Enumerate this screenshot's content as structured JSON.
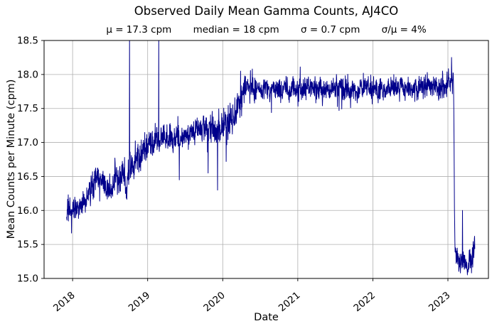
{
  "chart_data": {
    "type": "line",
    "title": "Observed Daily Mean Gamma Counts, AJ4CO",
    "stats": {
      "mu": "μ = 17.3 cpm",
      "median": "median = 18 cpm",
      "sigma": "σ = 0.7 cpm",
      "sigma_over_mu": "σ/μ = 4%"
    },
    "xlabel": "Date",
    "ylabel": "Mean Counts per Minute (cpm)",
    "x_ticks": [
      2018,
      2019,
      2020,
      2021,
      2022,
      2023
    ],
    "y_ticks": [
      15.0,
      15.5,
      16.0,
      16.5,
      17.0,
      17.5,
      18.0,
      18.5
    ],
    "xlim": [
      2017.62,
      2023.54
    ],
    "ylim": [
      15.0,
      18.5
    ],
    "grid": true,
    "legend": "none",
    "line_color": "#00008b",
    "grid_color": "#b0b0b0",
    "axis_color": "#000000",
    "series": {
      "name": "Observed daily mean gamma counts",
      "units": "cpm",
      "sampling": "daily",
      "x_start": 2017.92,
      "x_end": 2023.36,
      "trend_anchors": [
        [
          2017.92,
          15.85
        ],
        [
          2018.0,
          15.97
        ],
        [
          2018.08,
          16.1
        ],
        [
          2018.17,
          16.18
        ],
        [
          2018.25,
          16.33
        ],
        [
          2018.33,
          16.47
        ],
        [
          2018.42,
          16.36
        ],
        [
          2018.49,
          16.3
        ],
        [
          2018.56,
          16.52
        ],
        [
          2018.64,
          16.48
        ],
        [
          2018.71,
          16.4
        ],
        [
          2018.78,
          16.62
        ],
        [
          2018.87,
          16.8
        ],
        [
          2018.96,
          16.95
        ],
        [
          2019.06,
          17.0
        ],
        [
          2019.16,
          17.04
        ],
        [
          2019.26,
          17.08
        ],
        [
          2019.36,
          17.14
        ],
        [
          2019.46,
          17.04
        ],
        [
          2019.56,
          17.12
        ],
        [
          2019.66,
          17.24
        ],
        [
          2019.76,
          17.27
        ],
        [
          2019.86,
          17.18
        ],
        [
          2019.96,
          17.13
        ],
        [
          2020.06,
          17.28
        ],
        [
          2020.14,
          17.4
        ],
        [
          2020.21,
          17.58
        ],
        [
          2020.28,
          17.76
        ],
        [
          2020.4,
          17.8
        ],
        [
          2020.8,
          17.78
        ],
        [
          2021.2,
          17.8
        ],
        [
          2021.6,
          17.78
        ],
        [
          2022.0,
          17.8
        ],
        [
          2022.4,
          17.8
        ],
        [
          2022.8,
          17.82
        ],
        [
          2023.0,
          17.86
        ],
        [
          2023.05,
          17.92
        ],
        [
          2023.075,
          17.96
        ],
        [
          2023.092,
          15.45
        ],
        [
          2023.12,
          15.26
        ],
        [
          2023.16,
          15.18
        ],
        [
          2023.22,
          15.22
        ],
        [
          2023.27,
          15.18
        ],
        [
          2023.31,
          15.28
        ],
        [
          2023.34,
          15.45
        ],
        [
          2023.36,
          15.55
        ]
      ],
      "noise_sd": [
        [
          2017.92,
          0.105
        ],
        [
          2018.45,
          0.125
        ],
        [
          2019.0,
          0.1
        ],
        [
          2019.9,
          0.115
        ],
        [
          2020.3,
          0.085
        ],
        [
          2023.085,
          0.09
        ]
      ],
      "anomalies": [
        [
          2018.715,
          16.18
        ],
        [
          2018.757,
          18.6
        ],
        [
          2019.148,
          18.6
        ],
        [
          2019.42,
          16.45
        ],
        [
          2019.805,
          16.55
        ],
        [
          2019.93,
          16.3
        ],
        [
          2020.045,
          16.72
        ],
        [
          2020.237,
          18.05
        ],
        [
          2020.65,
          17.44
        ],
        [
          2021.55,
          17.47
        ],
        [
          2023.05,
          18.25
        ],
        [
          2023.195,
          16.0
        ],
        [
          2023.355,
          15.62
        ]
      ],
      "clip_top": 18.5,
      "clip_bottom": 15.0
    }
  }
}
